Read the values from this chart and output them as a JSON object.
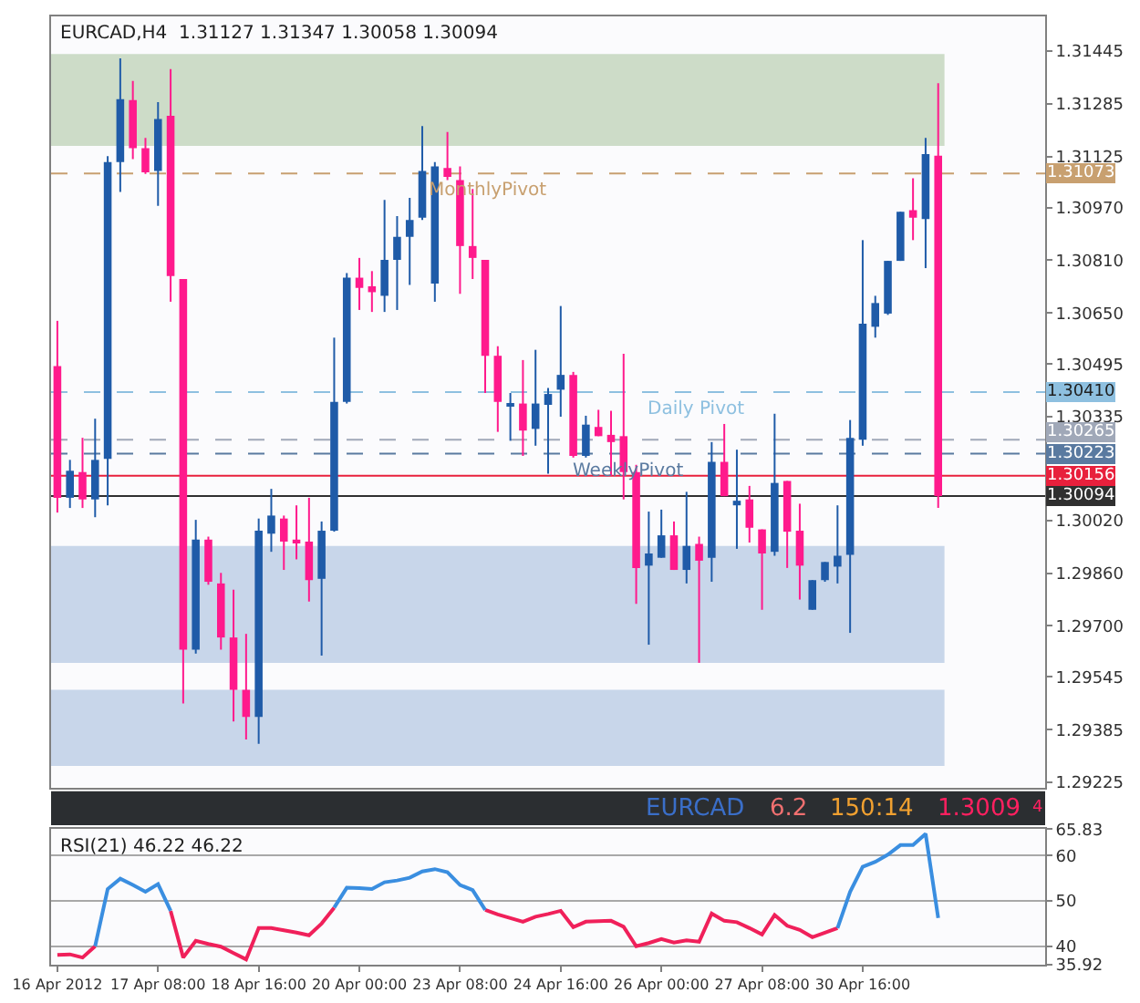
{
  "chart_data": [
    {
      "type": "candlestick",
      "title": "EURCAD,H4  1.31127 1.31347 1.30058 1.30094",
      "categories": [
        null,
        null,
        null,
        null,
        null,
        null,
        null,
        null,
        null,
        null,
        null,
        null,
        null,
        null,
        null,
        null,
        null,
        null,
        null,
        null,
        null,
        null,
        null,
        null,
        null,
        null,
        null,
        null,
        null,
        null,
        null,
        null,
        null,
        null,
        null,
        null,
        null,
        null,
        null,
        null,
        null,
        null,
        null,
        null,
        null,
        null,
        null,
        null,
        null,
        null,
        null,
        null,
        null,
        null,
        null,
        null,
        null,
        null,
        null,
        null,
        null,
        null,
        null,
        null,
        null,
        null,
        null,
        null,
        null,
        null,
        null,
        null,
        null,
        null,
        null,
        null,
        null,
        null,
        null
      ],
      "ohlc": [
        [
          1.30489,
          1.30626,
          1.30044,
          1.30089
        ],
        [
          1.30089,
          1.30204,
          1.30058,
          1.30171
        ],
        [
          1.30167,
          1.30271,
          1.30058,
          1.30084
        ],
        [
          1.30084,
          1.30329,
          1.3003,
          1.30204
        ],
        [
          1.30207,
          1.31126,
          1.30066,
          1.31108
        ],
        [
          1.31108,
          1.31423,
          1.31017,
          1.31299
        ],
        [
          1.31296,
          1.31354,
          1.31117,
          1.3115
        ],
        [
          1.3115,
          1.31181,
          1.31072,
          1.31077
        ],
        [
          1.31081,
          1.3129,
          1.30975,
          1.31239
        ],
        [
          1.31248,
          1.3139,
          1.30684,
          1.30762
        ],
        [
          1.30753,
          1.30753,
          1.29465,
          1.29628
        ],
        [
          1.29628,
          1.30022,
          1.29616,
          1.29962
        ],
        [
          1.29962,
          1.29971,
          1.29825,
          1.29834
        ],
        [
          1.29829,
          1.29861,
          1.29628,
          1.29665
        ],
        [
          1.29665,
          1.2981,
          1.2941,
          1.29506
        ],
        [
          1.29506,
          1.29676,
          1.29355,
          1.29424
        ],
        [
          1.29424,
          1.30026,
          1.29342,
          1.29989
        ],
        [
          1.2998,
          1.30116,
          1.29925,
          1.30035
        ],
        [
          1.30026,
          1.30035,
          1.2987,
          1.29956
        ],
        [
          1.29962,
          1.30066,
          1.29902,
          1.29953
        ],
        [
          1.29956,
          1.30089,
          1.29774,
          1.29839
        ],
        [
          1.29843,
          1.30017,
          1.2961,
          1.29989
        ],
        [
          1.29989,
          1.30575,
          1.29986,
          1.3038
        ],
        [
          1.3038,
          1.30771,
          1.30375,
          1.30757
        ],
        [
          1.30757,
          1.30817,
          1.30659,
          1.30726
        ],
        [
          1.30731,
          1.30777,
          1.30653,
          1.30713
        ],
        [
          1.30702,
          1.30993,
          1.30653,
          1.30811
        ],
        [
          1.30811,
          1.30944,
          1.30659,
          1.30881
        ],
        [
          1.30881,
          1.30999,
          1.30735,
          1.30932
        ],
        [
          1.30939,
          1.31217,
          1.30932,
          1.31081
        ],
        [
          1.30739,
          1.31108,
          1.30684,
          1.31095
        ],
        [
          1.3109,
          1.31199,
          1.31053,
          1.31063
        ],
        [
          1.31053,
          1.31095,
          1.30708,
          1.30853
        ],
        [
          1.30853,
          1.31026,
          1.30753,
          1.30817
        ],
        [
          1.30811,
          1.30811,
          1.30407,
          1.3052
        ],
        [
          1.3052,
          1.30549,
          1.30289,
          1.3038
        ],
        [
          1.30371,
          1.30407,
          1.30262,
          1.30375
        ],
        [
          1.30375,
          1.30507,
          1.30216,
          1.30293
        ],
        [
          1.30298,
          1.30538,
          1.30247,
          1.30375
        ],
        [
          1.30371,
          1.30422,
          1.30162,
          1.30404
        ],
        [
          1.30417,
          1.30671,
          1.30335,
          1.30462
        ],
        [
          1.30462,
          1.30471,
          1.30211,
          1.30216
        ],
        [
          1.30216,
          1.30338,
          1.30211,
          1.30311
        ],
        [
          1.30304,
          1.30356,
          1.30276,
          1.30276
        ],
        [
          1.3028,
          1.30353,
          1.30156,
          1.30258
        ],
        [
          1.30276,
          1.30526,
          1.30084,
          1.30167
        ],
        [
          1.30167,
          1.30189,
          1.29767,
          1.29876
        ],
        [
          1.29883,
          1.30047,
          1.29643,
          1.2992
        ],
        [
          1.29907,
          1.30053,
          1.29907,
          1.29975
        ],
        [
          1.29975,
          1.30017,
          1.2987,
          1.2987
        ],
        [
          1.2987,
          1.30107,
          1.29829,
          1.29943
        ],
        [
          1.29949,
          1.29971,
          1.29588,
          1.29898
        ],
        [
          1.29907,
          1.30258,
          1.29834,
          1.30198
        ],
        [
          1.30198,
          1.30313,
          1.30094,
          1.30094
        ],
        [
          1.30066,
          1.30235,
          1.29934,
          1.3008
        ],
        [
          1.30084,
          1.30125,
          1.29953,
          1.29998
        ],
        [
          1.29993,
          1.29993,
          1.29749,
          1.2992
        ],
        [
          1.29925,
          1.30344,
          1.29913,
          1.30134
        ],
        [
          1.3014,
          1.3014,
          1.29876,
          1.29986
        ],
        [
          1.29989,
          1.30071,
          1.2978,
          1.29883
        ],
        [
          1.29749,
          1.29839,
          1.29749,
          1.29839
        ],
        [
          1.29839,
          1.29894,
          1.29834,
          1.29894
        ],
        [
          1.2988,
          1.30066,
          1.29829,
          1.29913
        ],
        [
          1.29916,
          1.30325,
          1.29679,
          1.30271
        ],
        [
          1.30265,
          1.30871,
          1.30247,
          1.30617
        ],
        [
          1.30608,
          1.30702,
          1.30575,
          1.3068
        ],
        [
          1.30648,
          1.30808,
          1.30644,
          1.30808
        ],
        [
          1.30808,
          1.30957,
          1.30808,
          1.30957
        ],
        [
          1.30962,
          1.31059,
          1.30871,
          1.30939
        ],
        [
          1.30935,
          1.31181,
          1.30786,
          1.31132
        ],
        [
          1.31127,
          1.31347,
          1.30058,
          1.30094
        ],
        null,
        null,
        null,
        null,
        null,
        null,
        null,
        null
      ],
      "colors": [
        "#ff1a8c",
        "#1f5ba8",
        "#ff1a8c",
        "#1f5ba8",
        "#1f5ba8",
        "#1f5ba8",
        "#ff1a8c",
        "#ff1a8c",
        "#1f5ba8",
        "#ff1a8c",
        "#ff1a8c",
        "#1f5ba8",
        "#ff1a8c",
        "#ff1a8c",
        "#ff1a8c",
        "#ff1a8c",
        "#1f5ba8",
        "#1f5ba8",
        "#ff1a8c",
        "#ff1a8c",
        "#ff1a8c",
        "#1f5ba8",
        "#1f5ba8",
        "#1f5ba8",
        "#ff1a8c",
        "#ff1a8c",
        "#1f5ba8",
        "#1f5ba8",
        "#1f5ba8",
        "#1f5ba8",
        "#1f5ba8",
        "#ff1a8c",
        "#ff1a8c",
        "#ff1a8c",
        "#ff1a8c",
        "#ff1a8c",
        "#1f5ba8",
        "#ff1a8c",
        "#1f5ba8",
        "#1f5ba8",
        "#1f5ba8",
        "#ff1a8c",
        "#1f5ba8",
        "#ff1a8c",
        "#ff1a8c",
        "#ff1a8c",
        "#ff1a8c",
        "#1f5ba8",
        "#1f5ba8",
        "#ff1a8c",
        "#1f5ba8",
        "#ff1a8c",
        "#1f5ba8",
        "#ff1a8c",
        "#1f5ba8",
        "#ff1a8c",
        "#ff1a8c",
        "#1f5ba8",
        "#ff1a8c",
        "#ff1a8c",
        "#1f5ba8",
        "#1f5ba8",
        "#1f5ba8",
        "#1f5ba8",
        "#1f5ba8",
        "#1f5ba8",
        "#1f5ba8",
        "#1f5ba8",
        "#ff1a8c",
        "#1f5ba8",
        "#ff1a8c",
        null,
        null,
        null,
        null,
        null,
        null,
        null,
        null
      ],
      "ylim": [
        1.2921,
        1.3155
      ],
      "yticks": [
        {
          "value": 1.29225,
          "label": "1.29225"
        },
        {
          "value": 1.29385,
          "label": "1.29385"
        },
        {
          "value": 1.29545,
          "label": "1.29545"
        },
        {
          "value": 1.297,
          "label": "1.29700"
        },
        {
          "value": 1.2986,
          "label": "1.29860"
        },
        {
          "value": 1.3002,
          "label": "1.30020"
        },
        {
          "value": 1.30335,
          "label": "1.30335"
        },
        {
          "value": 1.30495,
          "label": "1.30495"
        },
        {
          "value": 1.3065,
          "label": "1.30650"
        },
        {
          "value": 1.3081,
          "label": "1.30810"
        },
        {
          "value": 1.3097,
          "label": "1.30970"
        },
        {
          "value": 1.31125,
          "label": "1.31125"
        },
        {
          "value": 1.31285,
          "label": "1.31285"
        },
        {
          "value": 1.31445,
          "label": "1.31445"
        }
      ],
      "tick_labels": "y",
      "grid": false,
      "ref_lines": [
        {
          "axis": "y",
          "value": 1.31073,
          "label": "1.31073",
          "color": "#c8a070",
          "line_style": "dashed"
        },
        {
          "axis": "y",
          "value": 1.3041,
          "label": "1.30410",
          "color": "#8ec0e0",
          "line_style": "dashed"
        },
        {
          "axis": "y",
          "value": 1.30265,
          "label": "1.30265",
          "color": "#a0a8b8",
          "line_style": "dashed"
        },
        {
          "axis": "y",
          "value": 1.30223,
          "label": "1.30223",
          "color": "#5a7aa0",
          "line_style": "dashed"
        },
        {
          "axis": "y",
          "value": 1.30156,
          "label": "1.30156",
          "color": "#e8203c",
          "line_style": "solid"
        },
        {
          "axis": "y",
          "value": 1.30094,
          "label": "1.30094",
          "color": "#303030",
          "line_style": "solid"
        }
      ],
      "bands": [
        {
          "axis": "y",
          "from": 1.31157,
          "to": 1.31436,
          "color": "#cddcc8"
        },
        {
          "axis": "y",
          "from": 1.29588,
          "to": 1.29943,
          "color": "#c8d6ea"
        },
        {
          "axis": "y",
          "from": 1.29275,
          "to": 1.29506,
          "color": "#c8d6ea"
        }
      ],
      "annotations": [
        "EURCAD",
        "6.2",
        "150:14",
        "1.3009",
        "4",
        {
          "text": "MonthlyPivot",
          "y": 1.31073
        },
        {
          "text": "Daily Pivot",
          "y": 1.3041
        },
        {
          "text": "WeeklyPivot",
          "y": 1.30223
        }
      ]
    },
    {
      "type": "line",
      "title": "RSI(21) 46.22 46.22",
      "categories": [
        "16 Apr 2012",
        null,
        null,
        null,
        null,
        null,
        null,
        null,
        "17 Apr 08:00",
        null,
        null,
        null,
        null,
        null,
        null,
        null,
        "18 Apr 16:00",
        null,
        null,
        null,
        null,
        null,
        null,
        null,
        "20 Apr 00:00",
        null,
        null,
        null,
        null,
        null,
        null,
        null,
        "23 Apr 08:00",
        null,
        null,
        null,
        null,
        null,
        null,
        null,
        "24 Apr 16:00",
        null,
        null,
        null,
        null,
        null,
        null,
        null,
        "26 Apr 00:00",
        null,
        null,
        null,
        null,
        null,
        null,
        null,
        "27 Apr 08:00",
        null,
        null,
        null,
        null,
        null,
        null,
        null,
        "30 Apr 16:00",
        null,
        null,
        null,
        null,
        null,
        null,
        null,
        null,
        null,
        null,
        null,
        null,
        null,
        null
      ],
      "series": [
        {
          "color": "#f0205a",
          "values": [
            38.1,
            38.2,
            37.5,
            40,
            null,
            null,
            null,
            null,
            null,
            47.8,
            37.5,
            41.2,
            40.5,
            39.9,
            38.5,
            37.1,
            44,
            44,
            43.5,
            43,
            42.4,
            45,
            48.5,
            null,
            null,
            null,
            null,
            null,
            null,
            null,
            null,
            null,
            null,
            null,
            48,
            47,
            46.2,
            45.4,
            46.5,
            47.1,
            47.8,
            44.2,
            45.4,
            45.5,
            45.6,
            44.3,
            40,
            40.7,
            41.6,
            40.8,
            41.3,
            41,
            47.2,
            45.6,
            45.3,
            44,
            42.6,
            46.9,
            44.5,
            43.6,
            42,
            43,
            44,
            null,
            null,
            null,
            null,
            null,
            null,
            null,
            null,
            null,
            null,
            null,
            null,
            null,
            null,
            null,
            null
          ]
        },
        {
          "color": "#3a8ee0",
          "values": [
            null,
            null,
            null,
            40,
            52.6,
            54.9,
            53.5,
            52.0,
            53.7,
            47.8,
            null,
            null,
            null,
            null,
            null,
            null,
            null,
            null,
            null,
            null,
            null,
            null,
            48.5,
            52.9,
            52.8,
            52.6,
            54.1,
            54.5,
            55.1,
            56.5,
            57,
            56.3,
            53.5,
            52.4,
            48,
            null,
            null,
            null,
            null,
            null,
            null,
            null,
            null,
            null,
            null,
            null,
            null,
            null,
            null,
            null,
            null,
            null,
            null,
            null,
            null,
            null,
            null,
            null,
            null,
            null,
            null,
            null,
            44,
            52,
            57.5,
            58.6,
            60.2,
            62.3,
            62.3,
            64.8,
            46.22,
            null,
            null,
            null,
            null,
            null,
            null,
            null,
            null
          ]
        }
      ],
      "ylim": [
        35.92,
        65.83
      ],
      "yticks": [
        35.92,
        40,
        50,
        60,
        65.83
      ],
      "grid": "y"
    }
  ]
}
